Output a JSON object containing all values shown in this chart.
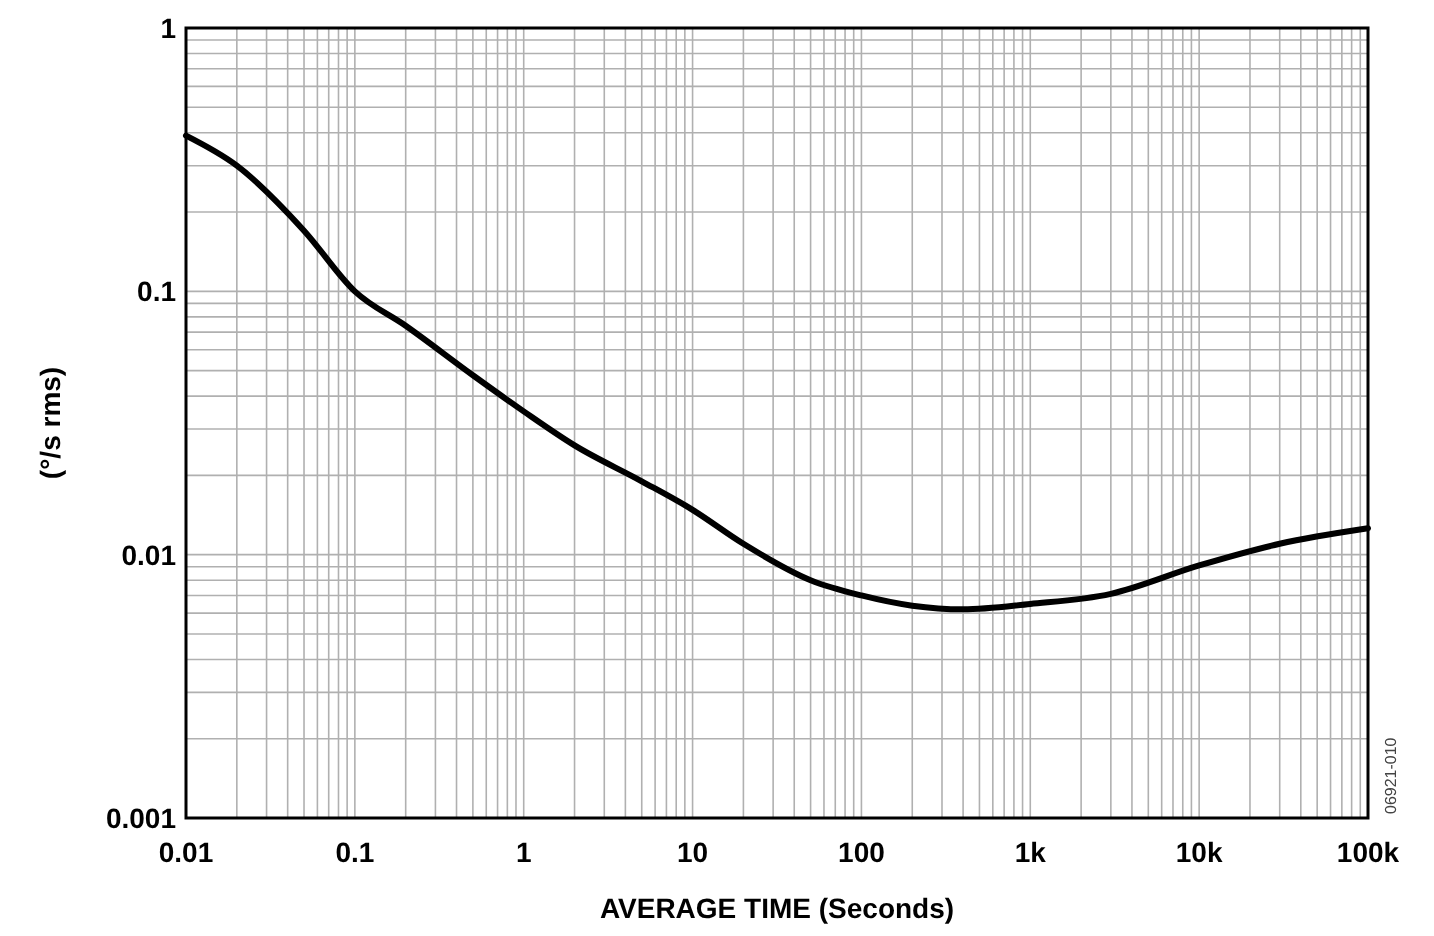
{
  "chart_data": {
    "type": "line",
    "xlabel": "AVERAGE TIME (Seconds)",
    "ylabel": "(°/s rms)",
    "log": "xy",
    "grid": true,
    "x": [
      0.01,
      0.02,
      0.05,
      0.1,
      0.2,
      0.5,
      1,
      2,
      5,
      10,
      20,
      50,
      100,
      200,
      400,
      1000,
      3000,
      10000,
      30000,
      100000
    ],
    "series": [
      {
        "color": "#000000",
        "values": [
          0.39,
          0.3,
          0.17,
          0.1,
          0.074,
          0.048,
          0.035,
          0.026,
          0.019,
          0.0148,
          0.011,
          0.008,
          0.007,
          0.0064,
          0.0062,
          0.0065,
          0.0071,
          0.0091,
          0.011,
          0.0126
        ]
      }
    ],
    "xlim": [
      0.01,
      100000
    ],
    "xticks": [
      0.01,
      0.1,
      1,
      10,
      100,
      {
        "value": 1000,
        "label": "1k"
      },
      {
        "value": 10000,
        "label": "10k"
      },
      {
        "value": 100000,
        "label": "100k"
      }
    ],
    "ylim": [
      0.001,
      1
    ],
    "yticks": [
      0.001,
      0.01,
      0.1,
      1
    ],
    "annotations": [
      "06921-010"
    ]
  }
}
